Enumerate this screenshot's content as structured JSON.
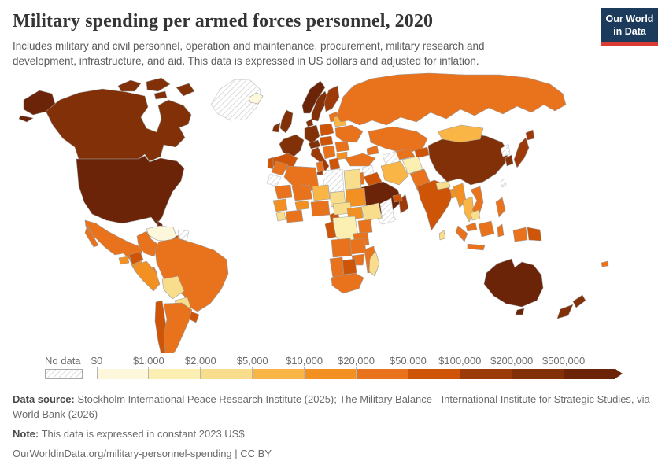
{
  "header": {
    "title": "Military spending per armed forces personnel, 2020",
    "subtitle": "Includes military and civil personnel, operation and maintenance, procurement, military research and development, infrastructure, and aid. This data is expressed in US dollars and adjusted for inflation.",
    "logo": {
      "line1": "Our World",
      "line2": "in Data",
      "bg_color": "#1b3a5c",
      "bar_color": "#d93a34"
    }
  },
  "legend": {
    "no_data_label": "No data",
    "tick_labels": [
      "$0",
      "$1,000",
      "$2,000",
      "$5,000",
      "$10,000",
      "$20,000",
      "$50,000",
      "$100,000",
      "$200,000",
      "$500,000"
    ],
    "colors": [
      "#fdf8dc",
      "#fbf0b1",
      "#f8dd8d",
      "#f9b646",
      "#f29121",
      "#e8731c",
      "#ce5507",
      "#9d3a0a",
      "#823007",
      "#6c2409"
    ]
  },
  "footer": {
    "data_source_label": "Data source:",
    "data_source": " Stockholm International Peace Research Institute (2025); The Military Balance - International Institute for Strategic Studies, via World Bank (2026)",
    "note_label": "Note:",
    "note": " This data is expressed in constant 2023 US$.",
    "url": "OurWorldinData.org/military-personnel-spending | CC BY"
  },
  "chart_data": {
    "type": "choropleth",
    "title": "Military spending per armed forces personnel, 2020",
    "year": "2020",
    "unit": "constant 2023 US$",
    "legend_bins": [
      "$0",
      "$1,000",
      "$2,000",
      "$5,000",
      "$10,000",
      "$20,000",
      "$50,000",
      "$100,000",
      "$200,000",
      "$500,000"
    ],
    "no_data_style": "gray-diagonal-hatch",
    "regions": {
      "greenland": -1,
      "canada": 8,
      "united-states": 9,
      "mexico": 5,
      "guatemala": 4,
      "honduras-nicaragua": 4,
      "costa-rica-panama": 5,
      "cuba": 5,
      "hispaniola": 6,
      "venezuela": 0,
      "guyanas": -1,
      "colombia": 5,
      "ecuador": 6,
      "peru": 4,
      "brazil": 5,
      "bolivia": 2,
      "paraguay": 2,
      "chile": 6,
      "argentina": 5,
      "uruguay": 6,
      "iceland": 0,
      "united-kingdom": 8,
      "ireland": 8,
      "norway": 9,
      "sweden": 8,
      "finland": 7,
      "denmark": 8,
      "baltics": 5,
      "germany": 8,
      "poland": 6,
      "france": 8,
      "spain": 6,
      "portugal": 6,
      "alpine-states": 8,
      "italy": 7,
      "czechia-hungary": 6,
      "balkans": 5,
      "romania": 5,
      "bulgaria": 4,
      "greece": 6,
      "belarus": 3,
      "ukraine": 5,
      "russia": 5,
      "kazakhstan": 5,
      "uzbekistan": 5,
      "turkmenistan": -1,
      "kyrgyzstan-tajikistan": 6,
      "caucasus": 5,
      "turkey": 5,
      "syria": -1,
      "iraq": 6,
      "jordan-israel": 5,
      "saudi-arabia": 9,
      "yemen": -1,
      "oman": 7,
      "uae": 6,
      "iran": 3,
      "afghanistan": 1,
      "pakistan": 5,
      "morocco": 5,
      "western-sahara": -1,
      "algeria": 5,
      "tunisia": 5,
      "libya": -1,
      "egypt": 2,
      "mauritania": 5,
      "mali": 5,
      "niger": 3,
      "chad": 2,
      "sudan": 4,
      "senegal-guinea": 4,
      "sierra-leone-liberia": 2,
      "ivory-coast-ghana": 5,
      "burkina-faso": 4,
      "nigeria": 5,
      "cameroon": 6,
      "central-african-republic": 2,
      "south-sudan": 4,
      "ethiopia": 2,
      "somalia": -1,
      "kenya": 5,
      "dr-congo": 1,
      "gabon-congo": 6,
      "tanzania": 5,
      "angola": 5,
      "zambia": 5,
      "mozambique": 5,
      "zimbabwe": 5,
      "botswana": 6,
      "namibia": 5,
      "south-africa": 5,
      "madagascar": 2,
      "india": 6,
      "nepal": 2,
      "bangladesh": 4,
      "sri-lanka": 2,
      "china": 8,
      "mongolia": 3,
      "north-korea": -1,
      "south-korea": 8,
      "japan": 7,
      "taiwan": -1,
      "myanmar": 4,
      "thailand": 3,
      "vietnam": 5,
      "cambodia": 2,
      "malaysia": 5,
      "philippines": 5,
      "indonesia": 5,
      "papua-new-guinea": 6,
      "fiji": 5,
      "australia": 9,
      "new-zealand": 8
    }
  }
}
